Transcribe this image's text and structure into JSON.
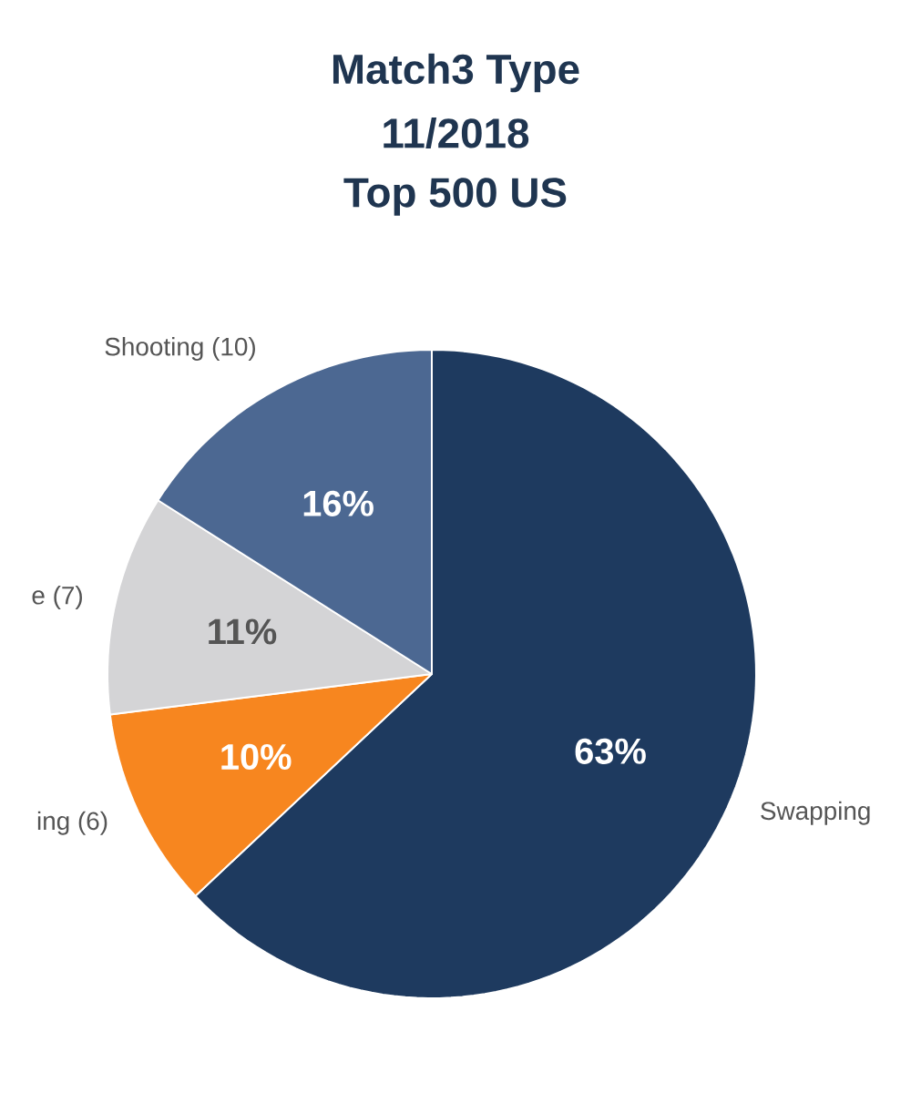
{
  "chart_data": {
    "type": "pie",
    "title": "Match3 Type",
    "subtitle": "11/2018",
    "annotations": [
      "Top 500 US"
    ],
    "categories": [
      "Swapping",
      "ing (6)",
      "e (7)",
      "Shooting (10)"
    ],
    "values": [
      63,
      10,
      11,
      16
    ],
    "value_labels": [
      "63%",
      "10%",
      "11%",
      "16%"
    ],
    "colors": [
      "#1e3a5f",
      "#f7861f",
      "#d4d4d6",
      "#4c6892"
    ]
  }
}
